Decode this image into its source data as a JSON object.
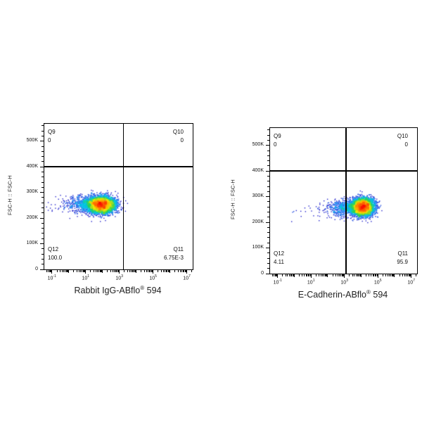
{
  "figure": {
    "background": "#ffffff",
    "axis_color": "#000000",
    "text_color": "#111111",
    "colormap_stops": [
      [
        0.0,
        "#2222cc"
      ],
      [
        0.3,
        "#2a7bf2"
      ],
      [
        0.5,
        "#00c8e6"
      ],
      [
        0.65,
        "#2fd24c"
      ],
      [
        0.8,
        "#f2e705"
      ],
      [
        0.9,
        "#ff8e00"
      ],
      [
        1.0,
        "#fa0f00"
      ]
    ]
  },
  "chart_data": [
    {
      "type": "scatter",
      "variant": "flow_cytometry_pseudocolor_density",
      "xlabel": "Rabbit IgG-ABflo® 594",
      "title_parts": {
        "name": "Rabbit IgG-ABflo",
        "registered_mark": "®",
        "suffix": " 594"
      },
      "ylabel": "FSC-H :: FSC-H",
      "x_scale": "log",
      "x_tick_exponents": [
        -1,
        1,
        3,
        5,
        7
      ],
      "x_tick_labels": [
        "10⁻¹",
        "10¹",
        "10³",
        "10⁵",
        "10⁷"
      ],
      "x_medium_decades": [
        0,
        2,
        4,
        6
      ],
      "x_range_decades": [
        -1.45,
        7.35
      ],
      "y_scale": "linear",
      "y_tick_values": [
        0,
        100000,
        200000,
        300000,
        400000,
        500000
      ],
      "y_tick_labels": [
        "0",
        "100K",
        "200K",
        "300K",
        "400K",
        "500K"
      ],
      "y_minor_step": 20000,
      "y_range": [
        0,
        568000
      ],
      "quadrant_gate": {
        "x_decade": 3.25,
        "y_value": 400000
      },
      "quadrants": {
        "top_left": {
          "name": "Q9",
          "value": "0"
        },
        "top_right": {
          "name": "Q10",
          "value": "0"
        },
        "bottom_left": {
          "name": "Q12",
          "value": "100.0"
        },
        "bottom_right": {
          "name": "Q11",
          "value": "6.75E-3"
        }
      },
      "population_clusters": [
        {
          "n": 5200,
          "cx_decade": 1.95,
          "sx_decade": 0.4,
          "cy": 252000,
          "sy": 15500
        },
        {
          "n": 850,
          "cx_decade": 1.2,
          "sx_decade": 0.6,
          "cy": 253000,
          "sy": 16500
        },
        {
          "n": 70,
          "cx_decade": 0.0,
          "sx_decade": 0.75,
          "cy": 254000,
          "sy": 15000
        }
      ],
      "seed": 1337
    },
    {
      "type": "scatter",
      "variant": "flow_cytometry_pseudocolor_density",
      "xlabel": "E-Cadherin-ABflo® 594",
      "title_parts": {
        "name": "E-Cadherin-ABflo",
        "registered_mark": "®",
        "suffix": " 594"
      },
      "ylabel": "FSC-H :: FSC-H",
      "x_scale": "log",
      "x_tick_exponents": [
        -1,
        1,
        3,
        5,
        7
      ],
      "x_tick_labels": [
        "10⁻¹",
        "10¹",
        "10³",
        "10⁵",
        "10⁷"
      ],
      "x_medium_decades": [
        0,
        2,
        4,
        6
      ],
      "x_range_decades": [
        -1.45,
        7.35
      ],
      "y_scale": "linear",
      "y_tick_values": [
        0,
        100000,
        200000,
        300000,
        400000,
        500000
      ],
      "y_tick_labels": [
        "0",
        "100K",
        "200K",
        "300K",
        "400K",
        "500K"
      ],
      "y_minor_step": 20000,
      "y_range": [
        0,
        568000
      ],
      "quadrant_gate": {
        "x_decade": 3.1,
        "y_value": 400000
      },
      "quadrants": {
        "top_left": {
          "name": "Q9",
          "value": "0"
        },
        "top_right": {
          "name": "Q10",
          "value": "0"
        },
        "bottom_left": {
          "name": "Q12",
          "value": "4.11"
        },
        "bottom_right": {
          "name": "Q11",
          "value": "95.9"
        }
      },
      "population_clusters": [
        {
          "n": 5200,
          "cx_decade": 4.1,
          "sx_decade": 0.33,
          "cy": 260000,
          "sy": 16500
        },
        {
          "n": 520,
          "cx_decade": 2.95,
          "sx_decade": 0.42,
          "cy": 256000,
          "sy": 17000
        },
        {
          "n": 55,
          "cx_decade": 1.7,
          "sx_decade": 0.7,
          "cy": 250000,
          "sy": 17000
        }
      ],
      "seed": 4242
    }
  ]
}
